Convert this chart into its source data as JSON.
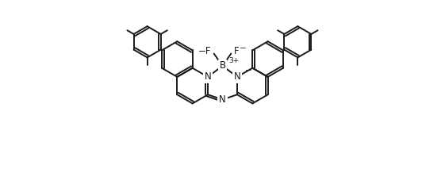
{
  "line_color": "#1a1a1a",
  "bg_color": "#ffffff",
  "lw": 1.4,
  "figsize": [
    5.61,
    2.13
  ],
  "dpi": 100,
  "xlim": [
    -3.0,
    3.0
  ],
  "ylim": [
    -1.35,
    1.35
  ]
}
